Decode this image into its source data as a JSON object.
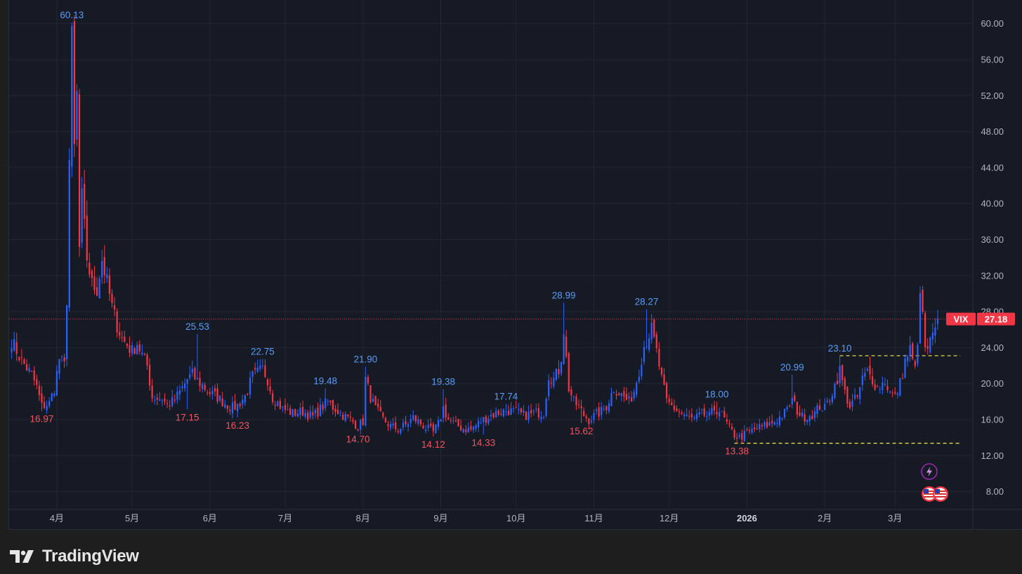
{
  "brand": {
    "name": "TradingView"
  },
  "colors": {
    "background": "#161a25",
    "grid": "#232733",
    "up": "#2962ff",
    "down": "#f23645",
    "high_label": "#5b9cf6",
    "low_label": "#f7525f",
    "level_line": "#f5e94c",
    "axis_text": "#b2b5be"
  },
  "price_badge": {
    "symbol": "VIX",
    "value": "27.18"
  },
  "event_icons": [
    "lightning-icon",
    "us-flag-icon",
    "us-flag-icon"
  ],
  "chart_data": {
    "type": "candlestick",
    "symbol": "VIX",
    "ylim": [
      6.8,
      62.0
    ],
    "y_ticks": [
      "60.00",
      "56.00",
      "52.00",
      "48.00",
      "44.00",
      "40.00",
      "36.00",
      "32.00",
      "28.00",
      "24.00",
      "20.00",
      "16.00",
      "12.00",
      "8.00"
    ],
    "x_ticks": [
      {
        "label": "4月",
        "day": 18
      },
      {
        "label": "5月",
        "day": 48
      },
      {
        "label": "6月",
        "day": 79
      },
      {
        "label": "7月",
        "day": 109
      },
      {
        "label": "8月",
        "day": 140
      },
      {
        "label": "9月",
        "day": 171
      },
      {
        "label": "10月",
        "day": 201
      },
      {
        "label": "11月",
        "day": 232
      },
      {
        "label": "12月",
        "day": 262
      },
      {
        "label": "2026",
        "day": 293,
        "bold": true
      },
      {
        "label": "2月",
        "day": 324
      },
      {
        "label": "3月",
        "day": 352
      }
    ],
    "day_range": [
      -1,
      383
    ],
    "last_price": 27.18,
    "levels": [
      {
        "value": 23.1,
        "from_day": 330,
        "to_day": 378
      },
      {
        "value": 13.38,
        "from_day": 288,
        "to_day": 378
      }
    ],
    "annotations": [
      {
        "text": "60.13",
        "day": 24,
        "value": 60.13,
        "type": "high"
      },
      {
        "text": "16.97",
        "day": 12,
        "value": 16.97,
        "type": "low"
      },
      {
        "text": "25.53",
        "day": 74,
        "value": 25.53,
        "type": "high"
      },
      {
        "text": "17.15",
        "day": 70,
        "value": 17.15,
        "type": "low"
      },
      {
        "text": "22.75",
        "day": 100,
        "value": 22.75,
        "type": "high"
      },
      {
        "text": "16.23",
        "day": 90,
        "value": 16.23,
        "type": "low"
      },
      {
        "text": "19.48",
        "day": 125,
        "value": 19.48,
        "type": "high"
      },
      {
        "text": "14.70",
        "day": 138,
        "value": 14.7,
        "type": "low"
      },
      {
        "text": "21.90",
        "day": 141,
        "value": 21.9,
        "type": "high"
      },
      {
        "text": "19.38",
        "day": 172,
        "value": 19.38,
        "type": "high"
      },
      {
        "text": "14.12",
        "day": 168,
        "value": 14.12,
        "type": "low"
      },
      {
        "text": "14.33",
        "day": 188,
        "value": 14.33,
        "type": "low"
      },
      {
        "text": "17.74",
        "day": 197,
        "value": 17.74,
        "type": "high"
      },
      {
        "text": "28.99",
        "day": 220,
        "value": 28.99,
        "type": "high"
      },
      {
        "text": "15.62",
        "day": 227,
        "value": 15.62,
        "type": "low"
      },
      {
        "text": "28.27",
        "day": 253,
        "value": 28.27,
        "type": "high"
      },
      {
        "text": "18.00",
        "day": 281,
        "value": 18.0,
        "type": "high"
      },
      {
        "text": "13.38",
        "day": 289,
        "value": 13.38,
        "type": "low"
      },
      {
        "text": "20.99",
        "day": 311,
        "value": 20.99,
        "type": "high"
      },
      {
        "text": "23.10",
        "day": 330,
        "value": 23.1,
        "type": "high"
      }
    ],
    "anchors": [
      [
        0,
        24.8
      ],
      [
        4,
        22.5
      ],
      [
        8,
        21.0
      ],
      [
        10,
        19.6
      ],
      [
        12,
        17.5
      ],
      [
        15,
        17.8
      ],
      [
        17,
        19.5
      ],
      [
        19,
        22.8
      ],
      [
        21,
        22.0
      ],
      [
        22,
        29.5
      ],
      [
        23,
        44.8
      ],
      [
        24,
        58.0
      ],
      [
        25,
        46.0
      ],
      [
        26,
        52.0
      ],
      [
        27,
        35.0
      ],
      [
        28,
        40.5
      ],
      [
        30,
        34.0
      ],
      [
        32,
        31.0
      ],
      [
        34,
        30.5
      ],
      [
        36,
        33.8
      ],
      [
        38,
        31.2
      ],
      [
        40,
        28.5
      ],
      [
        42,
        26.5
      ],
      [
        44,
        25.0
      ],
      [
        46,
        24.3
      ],
      [
        48,
        23.6
      ],
      [
        50,
        24.5
      ],
      [
        52,
        23.2
      ],
      [
        54,
        22.0
      ],
      [
        56,
        18.5
      ],
      [
        60,
        18.3
      ],
      [
        62,
        17.6
      ],
      [
        65,
        18.2
      ],
      [
        68,
        19.5
      ],
      [
        70,
        20.5
      ],
      [
        72,
        21.0
      ],
      [
        74,
        20.3
      ],
      [
        76,
        19.8
      ],
      [
        78,
        19.2
      ],
      [
        80,
        18.8
      ],
      [
        82,
        18.5
      ],
      [
        85,
        17.8
      ],
      [
        88,
        17.3
      ],
      [
        90,
        17.6
      ],
      [
        93,
        18.6
      ],
      [
        96,
        20.8
      ],
      [
        98,
        21.2
      ],
      [
        100,
        21.6
      ],
      [
        102,
        20.5
      ],
      [
        104,
        18.5
      ],
      [
        108,
        17.2
      ],
      [
        112,
        16.7
      ],
      [
        116,
        16.9
      ],
      [
        120,
        16.3
      ],
      [
        124,
        17.5
      ],
      [
        126,
        18.0
      ],
      [
        128,
        17.4
      ],
      [
        132,
        16.5
      ],
      [
        136,
        15.8
      ],
      [
        138,
        15.2
      ],
      [
        140,
        15.8
      ],
      [
        141,
        20.5
      ],
      [
        143,
        18.5
      ],
      [
        145,
        17.2
      ],
      [
        148,
        16.0
      ],
      [
        151,
        15.3
      ],
      [
        154,
        14.9
      ],
      [
        157,
        15.4
      ],
      [
        160,
        16.2
      ],
      [
        162,
        15.8
      ],
      [
        165,
        15.1
      ],
      [
        168,
        14.6
      ],
      [
        170,
        15.5
      ],
      [
        172,
        17.3
      ],
      [
        174,
        16.0
      ],
      [
        177,
        15.4
      ],
      [
        180,
        15.0
      ],
      [
        183,
        14.9
      ],
      [
        186,
        15.6
      ],
      [
        189,
        16.2
      ],
      [
        192,
        16.6
      ],
      [
        195,
        16.9
      ],
      [
        198,
        17.0
      ],
      [
        201,
        16.8
      ],
      [
        204,
        16.5
      ],
      [
        207,
        16.6
      ],
      [
        210,
        16.8
      ],
      [
        212,
        16.7
      ],
      [
        214,
        21.0
      ],
      [
        216,
        20.5
      ],
      [
        218,
        21.5
      ],
      [
        219,
        23.0
      ],
      [
        220,
        26.0
      ],
      [
        222,
        19.5
      ],
      [
        224,
        18.0
      ],
      [
        226,
        17.4
      ],
      [
        228,
        16.5
      ],
      [
        230,
        16.0
      ],
      [
        232,
        16.4
      ],
      [
        235,
        16.9
      ],
      [
        237,
        17.5
      ],
      [
        240,
        19.5
      ],
      [
        242,
        19.0
      ],
      [
        244,
        18.5
      ],
      [
        246,
        18.0
      ],
      [
        248,
        19.2
      ],
      [
        250,
        21.5
      ],
      [
        252,
        24.2
      ],
      [
        254,
        25.5
      ],
      [
        255,
        26.0
      ],
      [
        257,
        23.5
      ],
      [
        259,
        20.5
      ],
      [
        261,
        18.0
      ],
      [
        263,
        17.5
      ],
      [
        266,
        16.8
      ],
      [
        269,
        16.3
      ],
      [
        272,
        16.0
      ],
      [
        275,
        16.6
      ],
      [
        278,
        16.3
      ],
      [
        280,
        17.2
      ],
      [
        282,
        17.0
      ],
      [
        284,
        16.0
      ],
      [
        286,
        15.0
      ],
      [
        288,
        14.3
      ],
      [
        290,
        14.0
      ],
      [
        293,
        14.5
      ],
      [
        296,
        14.9
      ],
      [
        299,
        15.2
      ],
      [
        302,
        15.5
      ],
      [
        305,
        16.0
      ],
      [
        307,
        16.5
      ],
      [
        309,
        17.0
      ],
      [
        311,
        18.2
      ],
      [
        313,
        17.0
      ],
      [
        315,
        16.3
      ],
      [
        317,
        16.4
      ],
      [
        320,
        16.7
      ],
      [
        322,
        17.5
      ],
      [
        324,
        17.2
      ],
      [
        326,
        18.5
      ],
      [
        328,
        19.8
      ],
      [
        330,
        21.5
      ],
      [
        332,
        19.0
      ],
      [
        334,
        17.5
      ],
      [
        337,
        18.5
      ],
      [
        339,
        20.5
      ],
      [
        341,
        21.3
      ],
      [
        343,
        20.5
      ],
      [
        345,
        19.5
      ],
      [
        348,
        20.3
      ],
      [
        350,
        19.0
      ],
      [
        352,
        18.5
      ],
      [
        354,
        20.0
      ],
      [
        356,
        22.5
      ],
      [
        358,
        23.8
      ],
      [
        359,
        22.5
      ],
      [
        360,
        21.5
      ],
      [
        361,
        25.0
      ],
      [
        362,
        29.2
      ],
      [
        363,
        28.0
      ],
      [
        364,
        23.5
      ],
      [
        366,
        24.5
      ],
      [
        368,
        25.8
      ],
      [
        369,
        27.18
      ]
    ]
  }
}
